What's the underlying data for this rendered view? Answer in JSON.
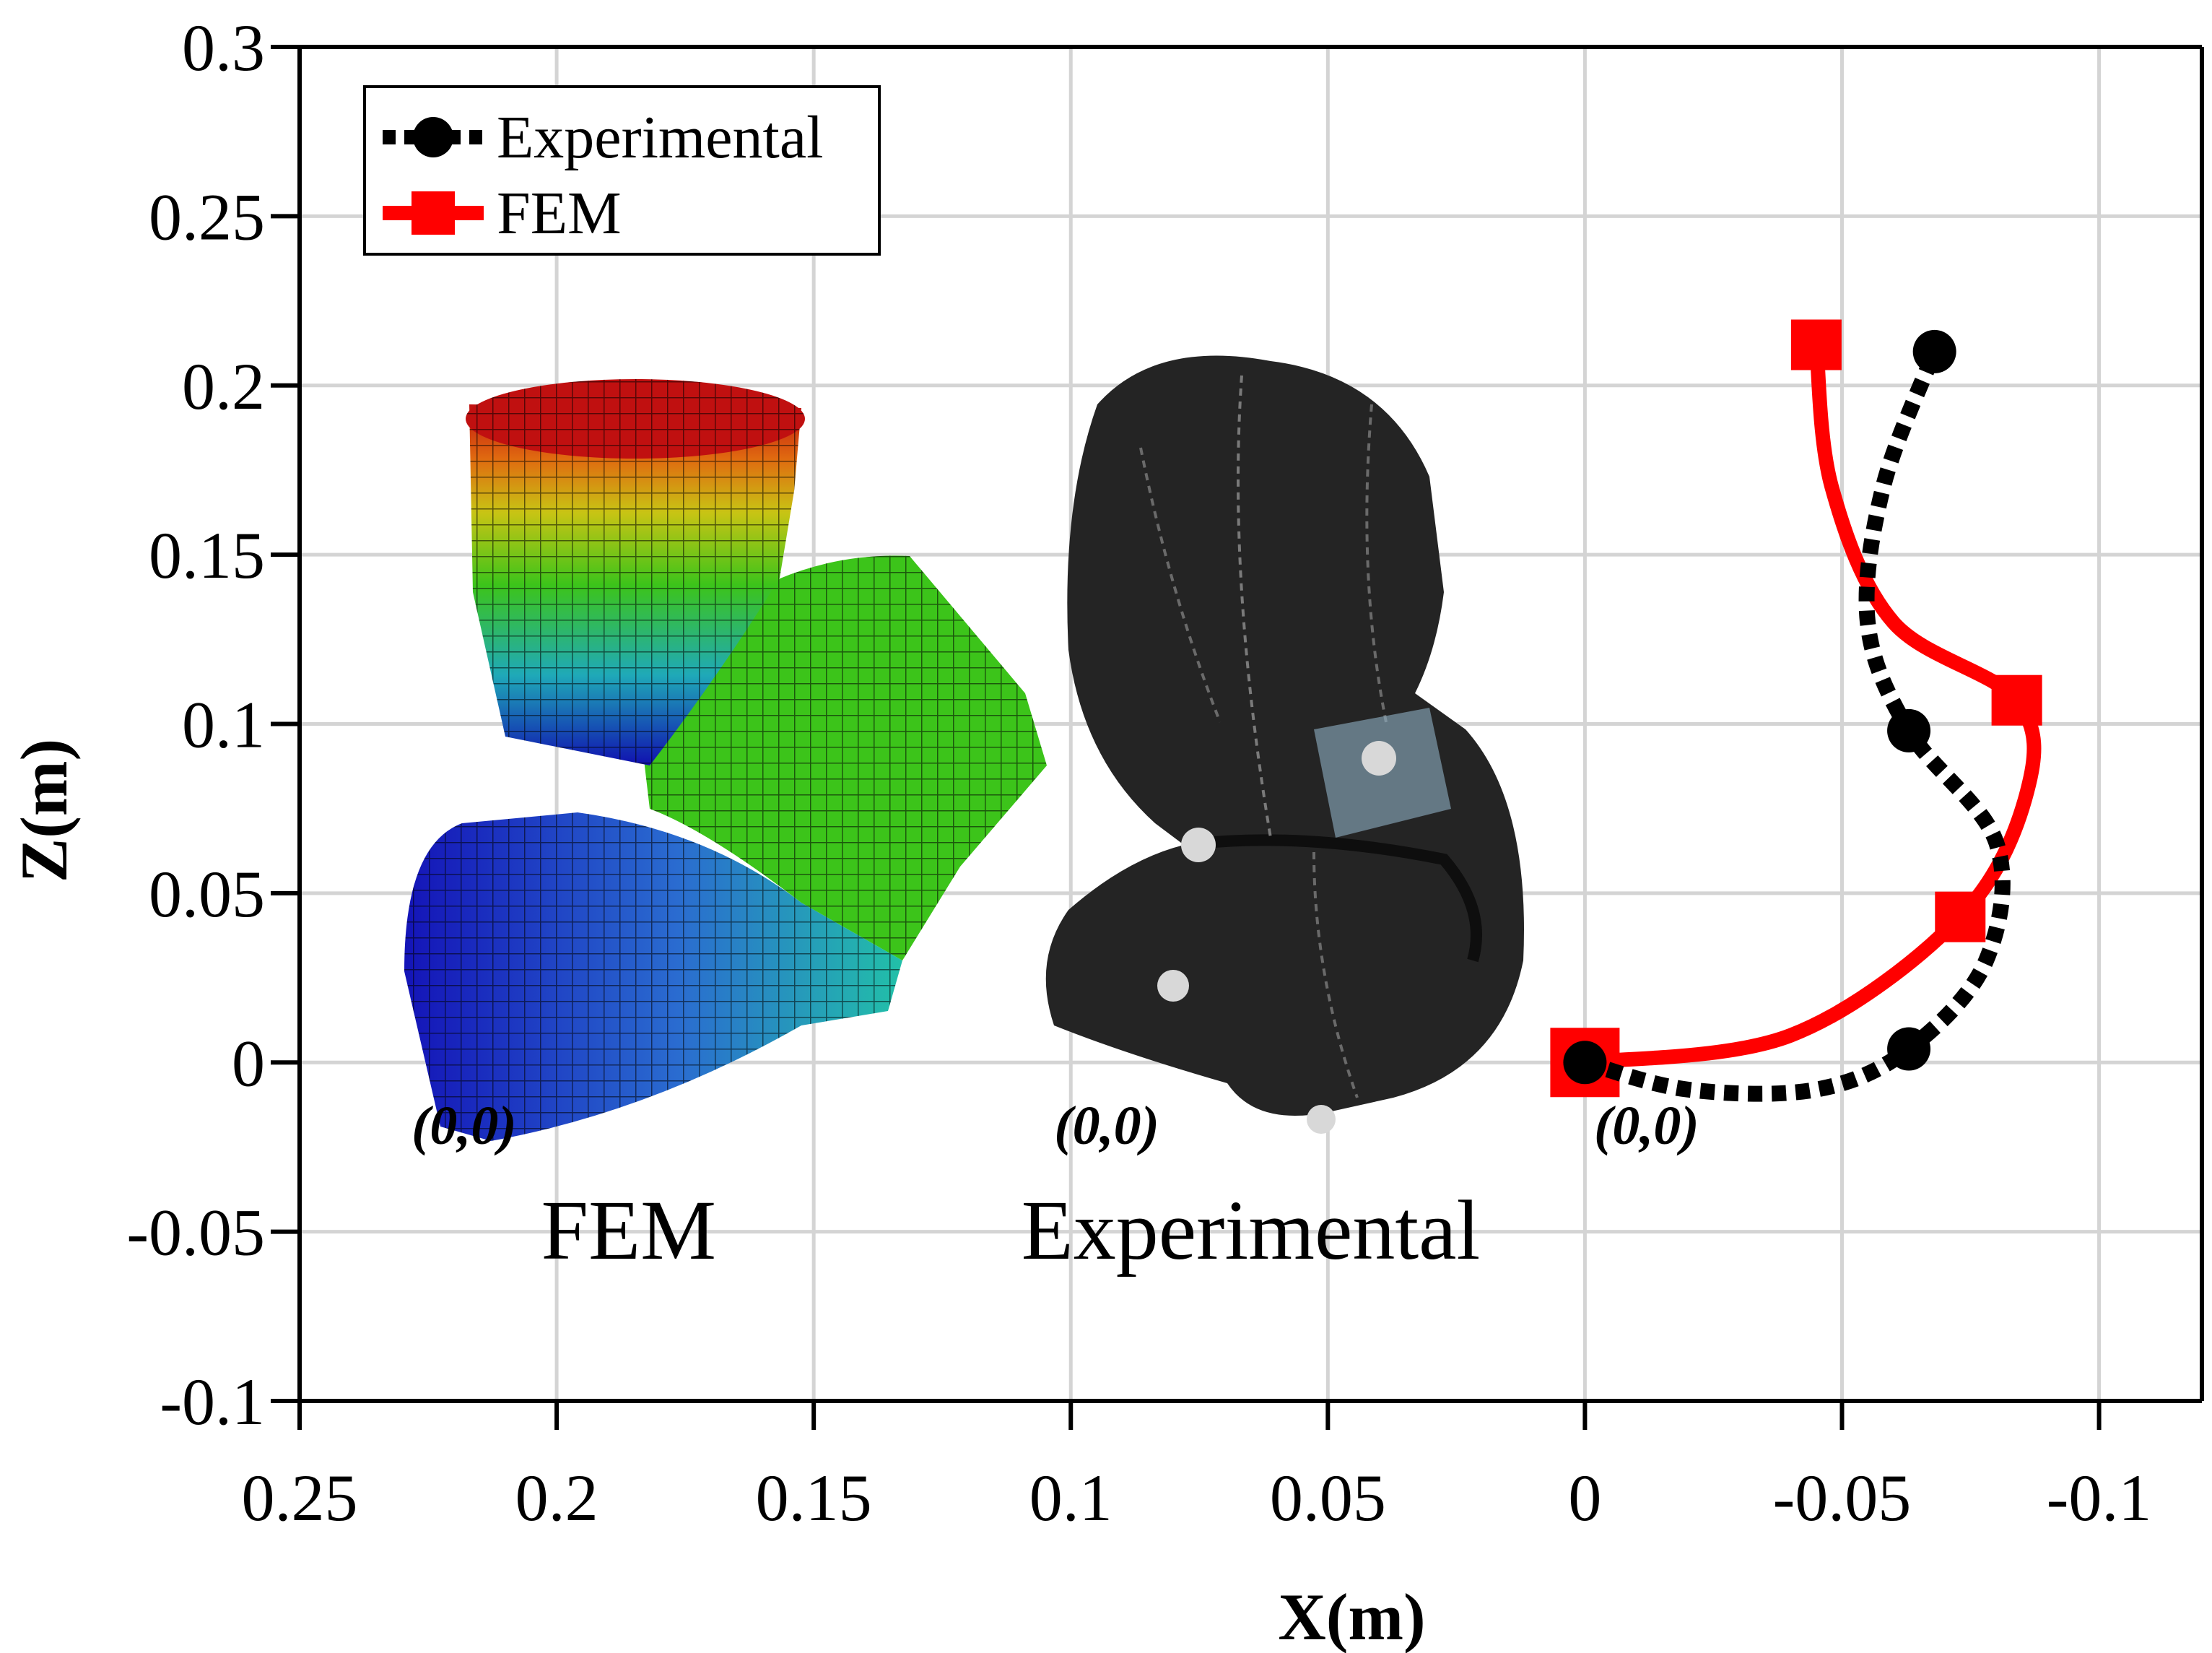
{
  "chart_data": {
    "type": "line",
    "xlabel": "X(m)",
    "ylabel": "Z(m)",
    "xlim": [
      0.25,
      -0.12
    ],
    "ylim": [
      -0.1,
      0.3
    ],
    "x_reversed": true,
    "grid": true,
    "legend_position": "top-left",
    "x_ticks": [
      {
        "value": 0.25,
        "label": "0.25"
      },
      {
        "value": 0.2,
        "label": "0.2"
      },
      {
        "value": 0.15,
        "label": "0.15"
      },
      {
        "value": 0.1,
        "label": "0.1"
      },
      {
        "value": 0.05,
        "label": "0.05"
      },
      {
        "value": 0,
        "label": "0"
      },
      {
        "value": -0.05,
        "label": "-0.05"
      },
      {
        "value": -0.1,
        "label": "-0.1"
      }
    ],
    "y_ticks": [
      {
        "value": 0.3,
        "label": "0.3"
      },
      {
        "value": 0.25,
        "label": "0.25"
      },
      {
        "value": 0.2,
        "label": "0.2"
      },
      {
        "value": 0.15,
        "label": "0.15"
      },
      {
        "value": 0.1,
        "label": "0.1"
      },
      {
        "value": 0.05,
        "label": "0.05"
      },
      {
        "value": 0,
        "label": "0"
      },
      {
        "value": -0.05,
        "label": "-0.05"
      },
      {
        "value": -0.1,
        "label": "-0.1"
      }
    ],
    "series": [
      {
        "name": "Experimental",
        "color": "#000000",
        "line_style": "dotted",
        "marker": "circle",
        "points": [
          [
            0,
            0
          ],
          [
            -0.063,
            0.004
          ],
          [
            -0.063,
            0.098
          ],
          [
            -0.068,
            0.21
          ]
        ],
        "curve": [
          [
            0,
            0
          ],
          [
            -0.02,
            -0.008
          ],
          [
            -0.045,
            -0.008
          ],
          [
            -0.063,
            0.004
          ],
          [
            -0.078,
            0.03
          ],
          [
            -0.08,
            0.065
          ],
          [
            -0.063,
            0.098
          ],
          [
            -0.055,
            0.13
          ],
          [
            -0.058,
            0.17
          ],
          [
            -0.068,
            0.21
          ]
        ]
      },
      {
        "name": "FEM",
        "color": "#ff0000",
        "line_style": "solid",
        "marker": "square",
        "points": [
          [
            0,
            0
          ],
          [
            -0.073,
            0.043
          ],
          [
            -0.084,
            0.107
          ],
          [
            -0.045,
            0.212
          ]
        ],
        "curve": [
          [
            0,
            0
          ],
          [
            -0.04,
            0.008
          ],
          [
            -0.073,
            0.043
          ],
          [
            -0.086,
            0.08
          ],
          [
            -0.084,
            0.107
          ],
          [
            -0.06,
            0.13
          ],
          [
            -0.048,
            0.17
          ],
          [
            -0.045,
            0.212
          ]
        ]
      }
    ],
    "annotations": [
      {
        "text": "(0,0)",
        "x": 0.218,
        "y": -0.024
      },
      {
        "text": "(0,0)",
        "x": 0.093,
        "y": -0.024
      },
      {
        "text": "(0,0)",
        "x": -0.012,
        "y": -0.024
      }
    ],
    "captions": [
      {
        "text": "FEM",
        "x": 0.186,
        "y": -0.058
      },
      {
        "text": "Experimental",
        "x": 0.065,
        "y": -0.058
      }
    ]
  }
}
